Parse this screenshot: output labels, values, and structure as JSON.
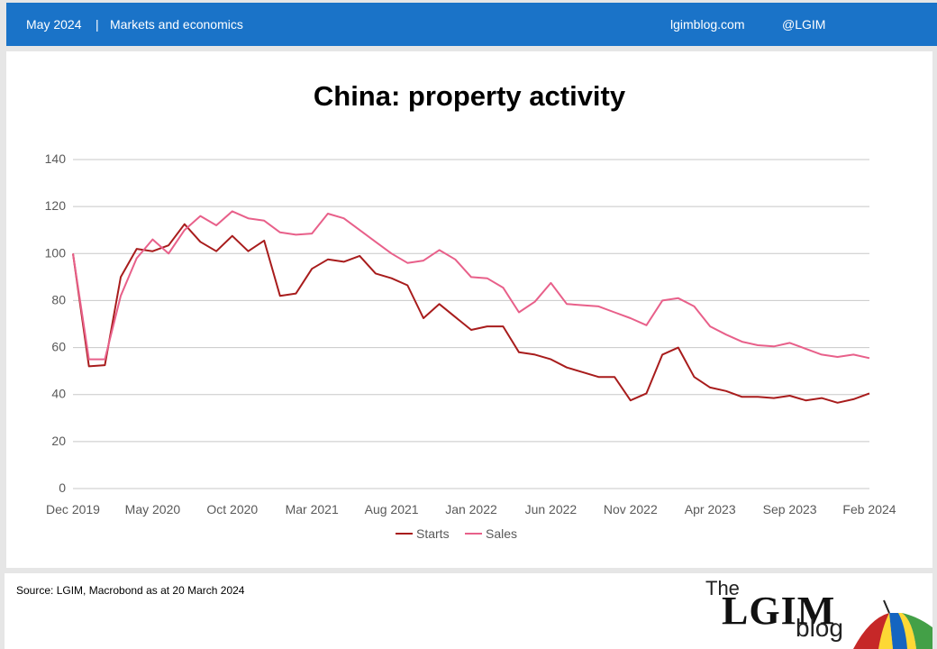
{
  "header": {
    "date": "May 2024",
    "separator": "|",
    "section": "Markets and economics",
    "site": "lgimblog.com",
    "handle": "@LGIM"
  },
  "footer": {
    "source": "Source: LGIM, Macrobond as at 20 March 2024",
    "logo_the": "The",
    "logo_lgim": "LGIM",
    "logo_blog": "blog"
  },
  "colors": {
    "header_bg": "#1a73c8",
    "starts": "#a81c1c",
    "sales": "#e8608a",
    "grid": "#c8c8c8"
  },
  "chart_data": {
    "type": "line",
    "title": "China: property activity",
    "xlabel": "",
    "ylabel": "",
    "ylim": [
      0,
      140
    ],
    "yticks": [
      0,
      20,
      40,
      60,
      80,
      100,
      120,
      140
    ],
    "grid": true,
    "legend_position": "bottom",
    "x_tick_labels": [
      "Dec 2019",
      "May 2020",
      "Oct 2020",
      "Mar 2021",
      "Aug 2021",
      "Jan 2022",
      "Jun 2022",
      "Nov 2022",
      "Apr 2023",
      "Sep 2023",
      "Feb 2024"
    ],
    "x": [
      "Dec 2019",
      "Jan 2020",
      "Feb 2020",
      "Mar 2020",
      "Apr 2020",
      "May 2020",
      "Jun 2020",
      "Jul 2020",
      "Aug 2020",
      "Sep 2020",
      "Oct 2020",
      "Nov 2020",
      "Dec 2020",
      "Jan 2021",
      "Feb 2021",
      "Mar 2021",
      "Apr 2021",
      "May 2021",
      "Jun 2021",
      "Jul 2021",
      "Aug 2021",
      "Sep 2021",
      "Oct 2021",
      "Nov 2021",
      "Dec 2021",
      "Jan 2022",
      "Feb 2022",
      "Mar 2022",
      "Apr 2022",
      "May 2022",
      "Jun 2022",
      "Jul 2022",
      "Aug 2022",
      "Sep 2022",
      "Oct 2022",
      "Nov 2022",
      "Dec 2022",
      "Jan 2023",
      "Feb 2023",
      "Mar 2023",
      "Apr 2023",
      "May 2023",
      "Jun 2023",
      "Jul 2023",
      "Aug 2023",
      "Sep 2023",
      "Oct 2023",
      "Nov 2023",
      "Dec 2023",
      "Jan 2024",
      "Feb 2024"
    ],
    "series": [
      {
        "name": "Starts",
        "color": "#a81c1c",
        "values": [
          100,
          52,
          52.5,
          90,
          102,
          101,
          103.5,
          112.5,
          105,
          101,
          107.5,
          101,
          105.5,
          82,
          83,
          93.5,
          97.5,
          96.5,
          99,
          91.5,
          89.5,
          86.5,
          72.5,
          78.5,
          73,
          67.5,
          69,
          69,
          58,
          57,
          55,
          51.5,
          49.5,
          47.5,
          47.5,
          37.5,
          40.5,
          57,
          60,
          47.5,
          43,
          41.5,
          39,
          39,
          38.5,
          39.5,
          37.5,
          38.5,
          36.5,
          38,
          40.5
        ]
      },
      {
        "name": "Sales",
        "color": "#e8608a",
        "values": [
          100,
          55,
          55,
          82,
          98,
          106,
          100,
          110,
          116,
          112,
          118,
          115,
          114,
          109,
          108,
          108.5,
          117,
          115,
          110,
          105,
          100,
          96,
          97,
          101.5,
          97.5,
          90,
          89.5,
          85.5,
          75,
          79.5,
          87.5,
          78.5,
          78,
          77.5,
          75,
          72.5,
          69.5,
          80,
          81,
          77.5,
          69,
          65.5,
          62.5,
          61,
          60.5,
          62,
          59.5,
          57,
          56,
          57,
          55.5
        ]
      }
    ]
  }
}
